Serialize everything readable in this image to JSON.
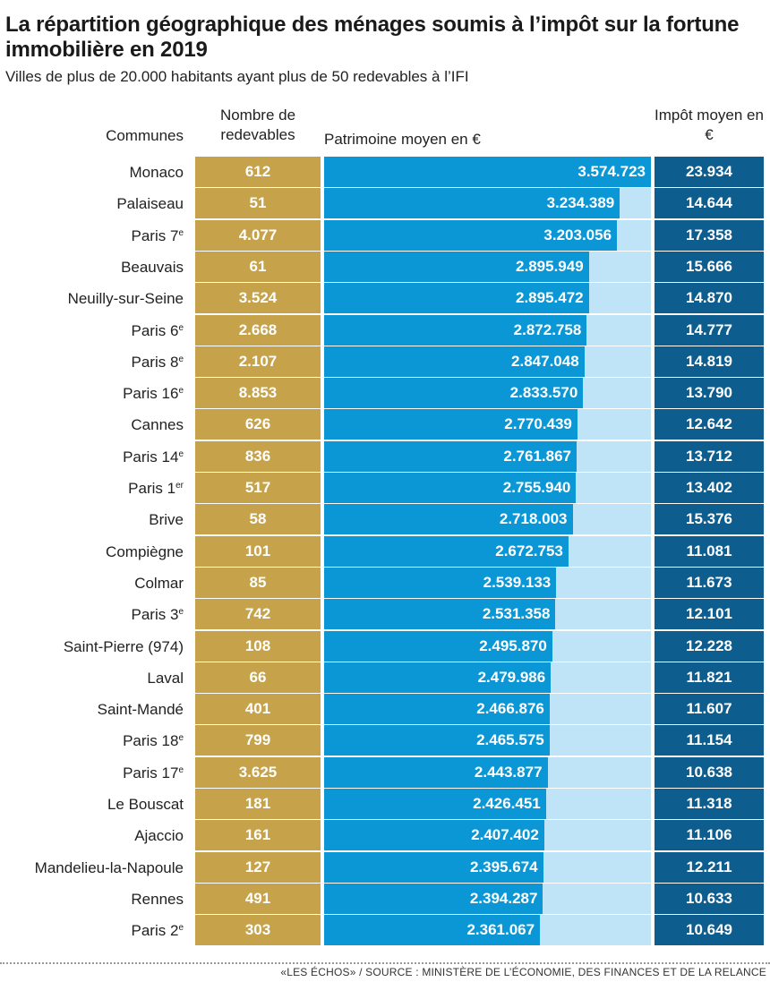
{
  "title": "La répartition géographique des ménages soumis à l’impôt sur la fortune immobilière en 2019",
  "subtitle": "Villes de plus de 20.000 habitants ayant plus de 50 redevables à l’IFI",
  "source": "«LES ÉCHOS» / SOURCE : MINISTÈRE DE L’ÉCONOMIE, DES FINANCES ET DE LA RELANCE",
  "colors": {
    "redevables": "#c6a24b",
    "patrimoine": "#0b97d6",
    "patrimoine_track": "#bfe3f7",
    "impot": "#0d5d8f"
  },
  "chart_data": {
    "type": "bar",
    "orientation": "horizontal",
    "column_headers": {
      "communes": "Communes",
      "nombre": "Nombre de redevables",
      "patrimoine": "Patrimoine moyen en €",
      "impot": "Impôt moyen en €"
    },
    "bar_range": [
      0,
      3574723
    ],
    "rows": [
      {
        "commune": "Monaco",
        "sup": "",
        "nombre": "612",
        "patrimoine_label": "3.574.723",
        "patrimoine": 3574723,
        "impot": "23.934"
      },
      {
        "commune": "Palaiseau",
        "sup": "",
        "nombre": "51",
        "patrimoine_label": "3.234.389",
        "patrimoine": 3234389,
        "impot": "14.644"
      },
      {
        "commune": "Paris 7",
        "sup": "e",
        "nombre": "4.077",
        "patrimoine_label": "3.203.056",
        "patrimoine": 3203056,
        "impot": "17.358"
      },
      {
        "commune": "Beauvais",
        "sup": "",
        "nombre": "61",
        "patrimoine_label": "2.895.949",
        "patrimoine": 2895949,
        "impot": "15.666"
      },
      {
        "commune": "Neuilly-sur-Seine",
        "sup": "",
        "nombre": "3.524",
        "patrimoine_label": "2.895.472",
        "patrimoine": 2895472,
        "impot": "14.870"
      },
      {
        "commune": "Paris 6",
        "sup": "e",
        "nombre": "2.668",
        "patrimoine_label": "2.872.758",
        "patrimoine": 2872758,
        "impot": "14.777"
      },
      {
        "commune": "Paris 8",
        "sup": "e",
        "nombre": "2.107",
        "patrimoine_label": "2.847.048",
        "patrimoine": 2847048,
        "impot": "14.819"
      },
      {
        "commune": "Paris 16",
        "sup": "e",
        "nombre": "8.853",
        "patrimoine_label": "2.833.570",
        "patrimoine": 2833570,
        "impot": "13.790"
      },
      {
        "commune": "Cannes",
        "sup": "",
        "nombre": "626",
        "patrimoine_label": "2.770.439",
        "patrimoine": 2770439,
        "impot": "12.642"
      },
      {
        "commune": "Paris 14",
        "sup": "e",
        "nombre": "836",
        "patrimoine_label": "2.761.867",
        "patrimoine": 2761867,
        "impot": "13.712"
      },
      {
        "commune": "Paris 1",
        "sup": "er",
        "nombre": "517",
        "patrimoine_label": "2.755.940",
        "patrimoine": 2755940,
        "impot": "13.402"
      },
      {
        "commune": "Brive",
        "sup": "",
        "nombre": "58",
        "patrimoine_label": "2.718.003",
        "patrimoine": 2718003,
        "impot": "15.376"
      },
      {
        "commune": "Compiègne",
        "sup": "",
        "nombre": "101",
        "patrimoine_label": "2.672.753",
        "patrimoine": 2672753,
        "impot": "11.081"
      },
      {
        "commune": "Colmar",
        "sup": "",
        "nombre": "85",
        "patrimoine_label": "2.539.133",
        "patrimoine": 2539133,
        "impot": "11.673"
      },
      {
        "commune": "Paris 3",
        "sup": "e",
        "nombre": "742",
        "patrimoine_label": "2.531.358",
        "patrimoine": 2531358,
        "impot": "12.101"
      },
      {
        "commune": "Saint-Pierre (974)",
        "sup": "",
        "nombre": "108",
        "patrimoine_label": "2.495.870",
        "patrimoine": 2495870,
        "impot": "12.228"
      },
      {
        "commune": "Laval",
        "sup": "",
        "nombre": "66",
        "patrimoine_label": "2.479.986",
        "patrimoine": 2479986,
        "impot": "11.821"
      },
      {
        "commune": "Saint-Mandé",
        "sup": "",
        "nombre": "401",
        "patrimoine_label": "2.466.876",
        "patrimoine": 2466876,
        "impot": "11.607"
      },
      {
        "commune": "Paris 18",
        "sup": "e",
        "nombre": "799",
        "patrimoine_label": "2.465.575",
        "patrimoine": 2465575,
        "impot": "11.154"
      },
      {
        "commune": "Paris 17",
        "sup": "e",
        "nombre": "3.625",
        "patrimoine_label": "2.443.877",
        "patrimoine": 2443877,
        "impot": "10.638"
      },
      {
        "commune": "Le Bouscat",
        "sup": "",
        "nombre": "181",
        "patrimoine_label": "2.426.451",
        "patrimoine": 2426451,
        "impot": "11.318"
      },
      {
        "commune": "Ajaccio",
        "sup": "",
        "nombre": "161",
        "patrimoine_label": "2.407.402",
        "patrimoine": 2407402,
        "impot": "11.106"
      },
      {
        "commune": "Mandelieu-la-Napoule",
        "sup": "",
        "nombre": "127",
        "patrimoine_label": "2.395.674",
        "patrimoine": 2395674,
        "impot": "12.211"
      },
      {
        "commune": "Rennes",
        "sup": "",
        "nombre": "491",
        "patrimoine_label": "2.394.287",
        "patrimoine": 2394287,
        "impot": "10.633"
      },
      {
        "commune": "Paris 2",
        "sup": "e",
        "nombre": "303",
        "patrimoine_label": "2.361.067",
        "patrimoine": 2361067,
        "impot": "10.649"
      }
    ]
  }
}
